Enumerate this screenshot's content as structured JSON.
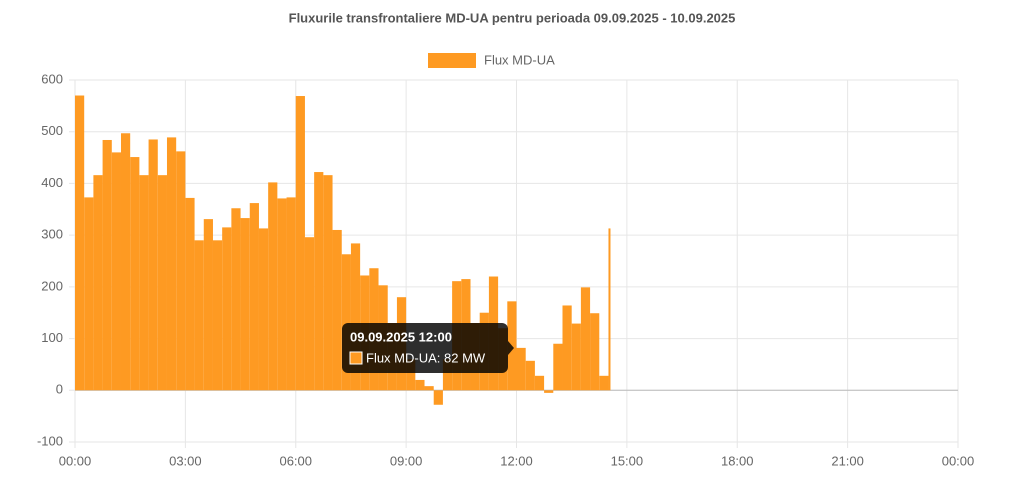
{
  "chart_data": {
    "type": "bar",
    "title": "Fluxurile transfrontaliere MD-UA pentru perioada 09.09.2025 - 10.09.2025",
    "x": [
      0,
      0.25,
      0.5,
      0.75,
      1,
      1.25,
      1.5,
      1.75,
      2,
      2.25,
      2.5,
      2.75,
      3,
      3.25,
      3.5,
      3.75,
      4,
      4.25,
      4.5,
      4.75,
      5,
      5.25,
      5.5,
      5.75,
      6,
      6.25,
      6.5,
      6.75,
      7,
      7.25,
      7.5,
      7.75,
      8,
      8.25,
      8.5,
      8.75,
      9,
      9.25,
      9.5,
      9.75,
      10,
      10.25,
      10.5,
      10.75,
      11,
      11.25,
      11.5,
      11.75,
      12,
      12.25,
      12.5,
      12.75,
      13,
      13.25,
      13.5,
      13.75,
      14,
      14.25,
      14.5
    ],
    "series": [
      {
        "name": "Flux MD-UA",
        "color": "#fe9a22",
        "values": [
          570,
          373,
          416,
          484,
          460,
          497,
          451,
          416,
          485,
          416,
          489,
          462,
          372,
          290,
          331,
          290,
          315,
          352,
          333,
          362,
          313,
          402,
          371,
          373,
          569,
          296,
          422,
          416,
          310,
          263,
          284,
          222,
          236,
          203,
          130,
          180,
          60,
          20,
          8,
          -28,
          60,
          211,
          215,
          130,
          150,
          220,
          120,
          172,
          82,
          57,
          28,
          -5,
          90,
          164,
          129,
          199,
          149,
          28,
          313
        ]
      }
    ],
    "xlim": [
      0,
      24
    ],
    "xticks": [
      {
        "value": 0,
        "label": "00:00"
      },
      {
        "value": 3,
        "label": "03:00"
      },
      {
        "value": 6,
        "label": "06:00"
      },
      {
        "value": 9,
        "label": "09:00"
      },
      {
        "value": 12,
        "label": "12:00"
      },
      {
        "value": 15,
        "label": "15:00"
      },
      {
        "value": 18,
        "label": "18:00"
      },
      {
        "value": 21,
        "label": "21:00"
      },
      {
        "value": 24,
        "label": "00:00"
      }
    ],
    "ylim": [
      -100,
      600
    ],
    "yticks": [
      -100,
      0,
      100,
      200,
      300,
      400,
      500,
      600
    ],
    "grid": true,
    "legend": "top",
    "tooltip": {
      "title": "09.09.2025 12:00",
      "label": "Flux MD-UA: 82 MW"
    }
  }
}
